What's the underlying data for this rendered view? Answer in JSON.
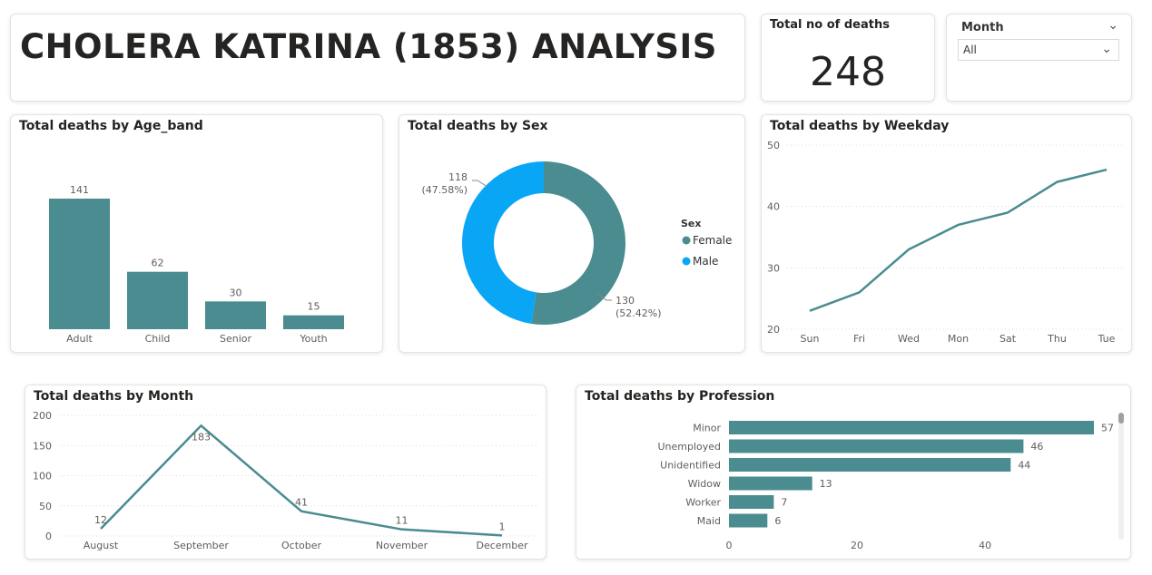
{
  "header": {
    "title": "CHOLERA KATRINA (1853) ANALYSIS"
  },
  "kpi": {
    "label": "Total no of deaths",
    "value": "248"
  },
  "slicer": {
    "label": "Month",
    "selected": "All"
  },
  "colors": {
    "teal": "#4a8c8f",
    "blue": "#0aa6f6",
    "text": "#252423",
    "axis": "#605e5c"
  },
  "chart_data": [
    {
      "id": "age_band",
      "type": "bar",
      "title": "Total deaths by Age_band",
      "categories": [
        "Adult",
        "Child",
        "Senior",
        "Youth"
      ],
      "values": [
        141,
        62,
        30,
        15
      ],
      "data_labels": true
    },
    {
      "id": "sex",
      "type": "pie",
      "variant": "donut",
      "title": "Total deaths by Sex",
      "legend_title": "Sex",
      "categories": [
        "Female",
        "Male"
      ],
      "values": [
        130,
        118
      ],
      "percent_labels": [
        "(52.42%)",
        "(47.58%)"
      ],
      "colors": [
        "#4a8c8f",
        "#0aa6f6"
      ],
      "legend_position": "right"
    },
    {
      "id": "weekday",
      "type": "line",
      "title": "Total deaths by Weekday",
      "categories": [
        "Sun",
        "Fri",
        "Wed",
        "Mon",
        "Sat",
        "Thu",
        "Tue"
      ],
      "values": [
        23,
        26,
        33,
        37,
        39,
        44,
        46
      ],
      "ylim": [
        20,
        50
      ],
      "yticks": [
        20,
        30,
        40,
        50
      ],
      "grid": true
    },
    {
      "id": "month",
      "type": "line",
      "title": "Total deaths by Month",
      "categories": [
        "August",
        "September",
        "October",
        "November",
        "December"
      ],
      "values": [
        12,
        183,
        41,
        11,
        1
      ],
      "ylim": [
        0,
        200
      ],
      "yticks": [
        0,
        50,
        100,
        150,
        200
      ],
      "data_labels": true,
      "grid": true
    },
    {
      "id": "profession",
      "type": "bar",
      "orientation": "horizontal",
      "title": "Total deaths by Profession",
      "categories": [
        "Minor",
        "Unemployed",
        "Unidentified",
        "Widow",
        "Worker",
        "Maid"
      ],
      "values": [
        57,
        46,
        44,
        13,
        7,
        6
      ],
      "xlim": [
        0,
        57
      ],
      "xticks": [
        0,
        20,
        40
      ],
      "data_labels": true
    }
  ]
}
